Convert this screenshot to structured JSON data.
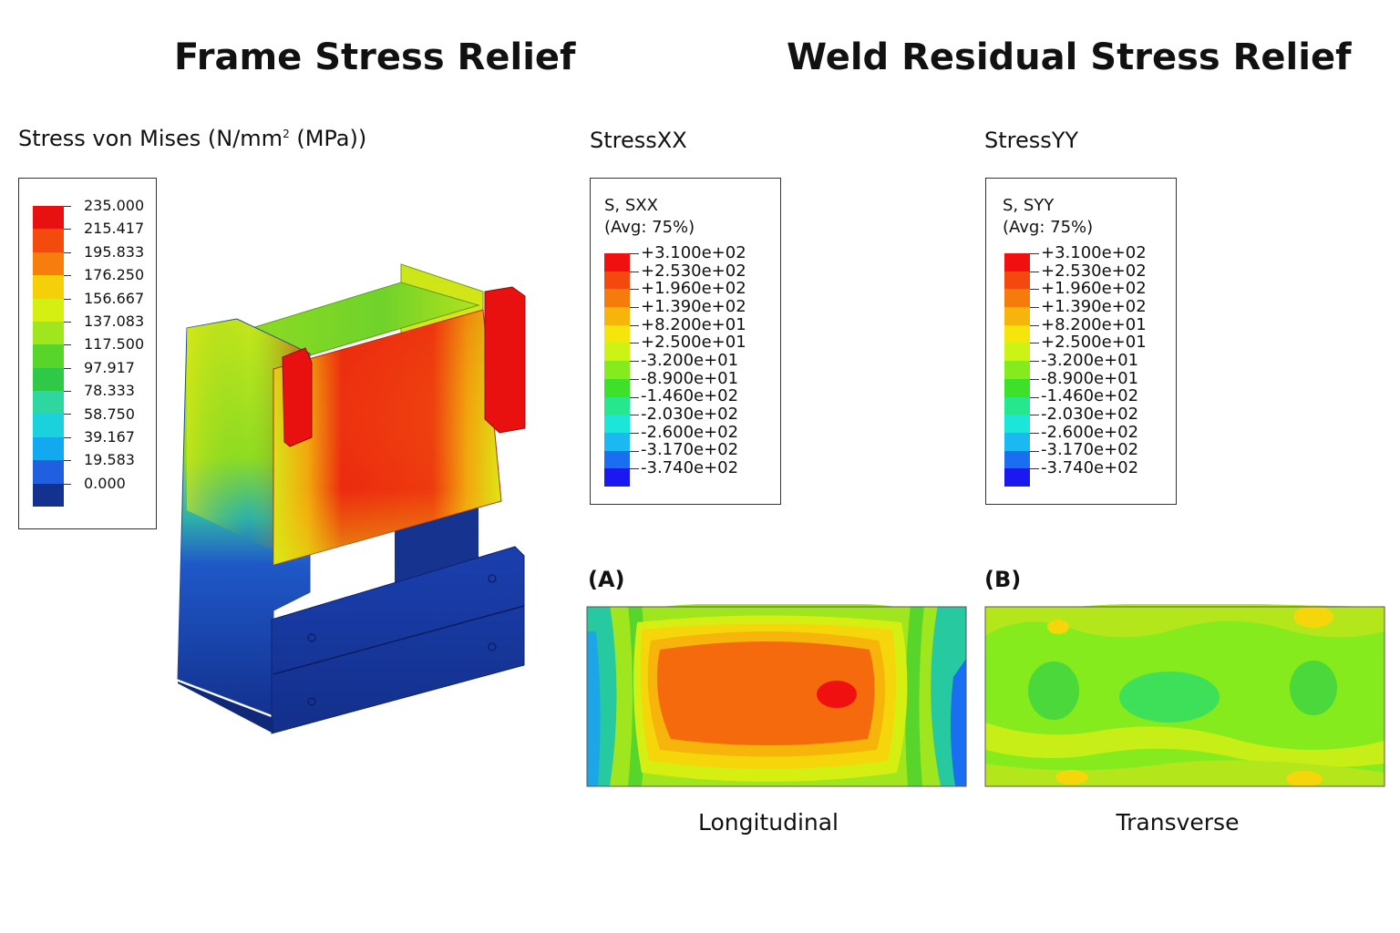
{
  "left": {
    "title": "Frame Stress Relief",
    "legend_title_main": "Stress von Mises (N/mm",
    "legend_title_sup": "2",
    "legend_title_tail": " (MPa))",
    "legend_labels": [
      "235.000",
      "215.417",
      "195.833",
      "176.250",
      "156.667",
      "137.083",
      "117.500",
      "97.917",
      "78.333",
      "58.750",
      "39.167",
      "19.583",
      "0.000"
    ],
    "legend_colors": [
      "#e8110f",
      "#f34a0d",
      "#f77d0d",
      "#f6cf0b",
      "#d6ef12",
      "#9fe61e",
      "#58d52a",
      "#2ec947",
      "#2ed7a0",
      "#1bd2dc",
      "#13a9f0",
      "#1f5fe0",
      "#13318f"
    ]
  },
  "right": {
    "title": "Weld Residual Stress Relief",
    "sxx": {
      "title": "StressXX",
      "head_line1": "S, SXX",
      "head_line2": "(Avg: 75%)",
      "labels": [
        "+3.100e+02",
        "+2.530e+02",
        "+1.960e+02",
        "+1.390e+02",
        "+8.200e+01",
        "+2.500e+01",
        "-3.200e+01",
        "-8.900e+01",
        "-1.460e+02",
        "-2.030e+02",
        "-2.600e+02",
        "-3.170e+02",
        "-3.740e+02"
      ]
    },
    "syy": {
      "title": "StressYY",
      "head_line1": "S, SYY",
      "head_line2": "(Avg: 75%)",
      "labels": [
        "+3.100e+02",
        "+2.530e+02",
        "+1.960e+02",
        "+1.390e+02",
        "+8.200e+01",
        "+2.500e+01",
        "-3.200e+01",
        "-8.900e+01",
        "-1.460e+02",
        "-2.030e+02",
        "-2.600e+02",
        "-3.170e+02",
        "-3.740e+02"
      ]
    },
    "abaqus_colors": [
      "#f01010",
      "#f3490e",
      "#f57b0c",
      "#f7b50b",
      "#f5e50b",
      "#cdf216",
      "#86eb1c",
      "#3fe02a",
      "#26e78c",
      "#1ce6d8",
      "#1bb8f2",
      "#1a6ef0",
      "#1a1af0"
    ],
    "panel_a": {
      "label": "(A)",
      "caption": "Longitudinal"
    },
    "panel_b": {
      "label": "(B)",
      "caption": "Transverse"
    }
  }
}
